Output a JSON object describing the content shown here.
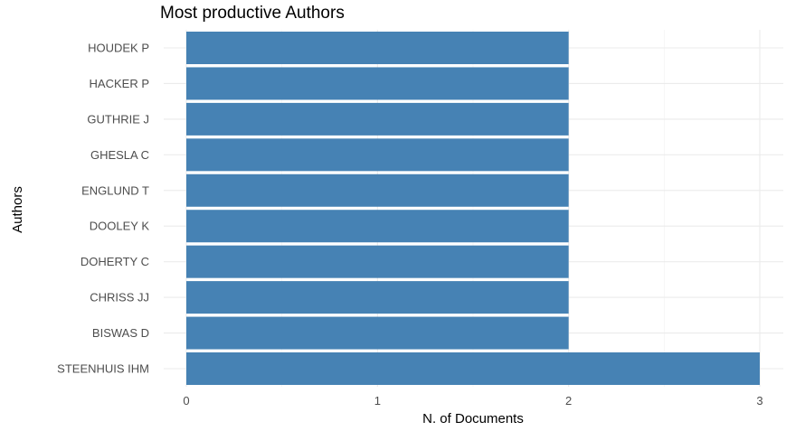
{
  "chart_data": {
    "type": "bar",
    "orientation": "horizontal",
    "title": "Most productive Authors",
    "xlabel": "N. of Documents",
    "ylabel": "Authors",
    "categories": [
      "HOUDEK P",
      "HACKER P",
      "GUTHRIE J",
      "GHESLA C",
      "ENGLUND T",
      "DOOLEY K",
      "DOHERTY C",
      "CHRISS JJ",
      "BISWAS D",
      "STEENHUIS IHM"
    ],
    "values": [
      2,
      2,
      2,
      2,
      2,
      2,
      2,
      2,
      2,
      3
    ],
    "xlim": [
      0,
      3
    ],
    "xticks": [
      "0",
      "1",
      "2",
      "3"
    ],
    "grid": true,
    "legend": "none",
    "bar_color": "#4682B4"
  }
}
